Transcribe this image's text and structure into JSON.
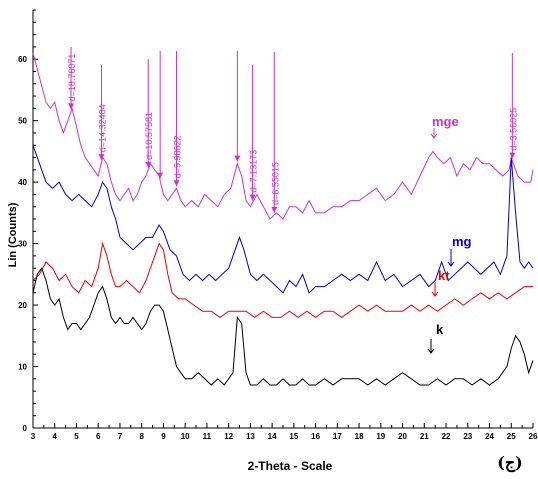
{
  "chart_data": {
    "type": "line",
    "xlabel": "2-Theta - Scale",
    "ylabel": "Lin (Counts)",
    "panel_label": "(ج)",
    "xlim": [
      3,
      26
    ],
    "ylim": [
      0,
      68
    ],
    "x_ticks": [
      3,
      4,
      5,
      6,
      7,
      8,
      9,
      10,
      11,
      12,
      13,
      14,
      15,
      16,
      17,
      18,
      19,
      20,
      21,
      22,
      23,
      24,
      25,
      26
    ],
    "y_ticks": [
      0,
      10,
      20,
      30,
      40,
      50,
      60
    ],
    "grid": false,
    "series": [
      {
        "name": "mge",
        "color": "#cc33cc",
        "x": [
          3.0,
          3.3,
          3.6,
          3.8,
          4.0,
          4.2,
          4.4,
          4.6,
          4.8,
          5.0,
          5.2,
          5.4,
          5.6,
          5.8,
          6.0,
          6.2,
          6.4,
          6.6,
          6.8,
          7.0,
          7.2,
          7.4,
          7.6,
          7.8,
          8.0,
          8.2,
          8.4,
          8.6,
          8.8,
          9.0,
          9.2,
          9.4,
          9.6,
          9.8,
          10.0,
          10.3,
          10.6,
          10.9,
          11.2,
          11.5,
          11.8,
          12.1,
          12.4,
          12.6,
          12.8,
          13.0,
          13.3,
          13.6,
          13.9,
          14.2,
          14.5,
          14.8,
          15.1,
          15.4,
          15.7,
          16.0,
          16.4,
          16.8,
          17.2,
          17.6,
          18.0,
          18.4,
          18.8,
          19.2,
          19.6,
          20.0,
          20.4,
          20.8,
          21.2,
          21.4,
          21.6,
          21.9,
          22.2,
          22.5,
          22.8,
          23.1,
          23.4,
          23.7,
          24.0,
          24.3,
          24.6,
          24.9,
          25.0,
          25.1,
          25.3,
          25.6,
          25.9,
          26.0
        ],
        "y": [
          61,
          57,
          53,
          52,
          53,
          50,
          48,
          50,
          52,
          49,
          46,
          44,
          43,
          42,
          41,
          44,
          43,
          40,
          38,
          37,
          38,
          39,
          37,
          38,
          40,
          41,
          43,
          42,
          41,
          38,
          37,
          38,
          39,
          37,
          36,
          37,
          36,
          38,
          37,
          36,
          38,
          39,
          43,
          41,
          37,
          36,
          38,
          36,
          34,
          35,
          34,
          36,
          36,
          35,
          37,
          35,
          35,
          36,
          36,
          37,
          37,
          38,
          39,
          37,
          38,
          40,
          38,
          41,
          44,
          45,
          44,
          43,
          44,
          41,
          43,
          42,
          44,
          43,
          43,
          42,
          41,
          42,
          44,
          43,
          41,
          40,
          40,
          42
        ]
      },
      {
        "name": "mg",
        "color": "#0000cc",
        "x": [
          3.0,
          3.3,
          3.6,
          3.9,
          4.2,
          4.5,
          4.8,
          5.1,
          5.4,
          5.7,
          6.0,
          6.2,
          6.4,
          6.6,
          6.8,
          7.0,
          7.3,
          7.6,
          7.9,
          8.2,
          8.5,
          8.8,
          9.0,
          9.3,
          9.6,
          9.9,
          10.2,
          10.5,
          10.8,
          11.1,
          11.4,
          11.7,
          12.0,
          12.3,
          12.5,
          12.7,
          13.0,
          13.3,
          13.6,
          13.9,
          14.2,
          14.5,
          14.8,
          15.1,
          15.4,
          15.7,
          16.0,
          16.4,
          16.8,
          17.2,
          17.6,
          18.0,
          18.4,
          18.8,
          19.2,
          19.6,
          20.0,
          20.4,
          20.8,
          21.2,
          21.5,
          21.8,
          22.1,
          22.4,
          22.7,
          23.0,
          23.3,
          23.6,
          23.9,
          24.2,
          24.5,
          24.8,
          25.0,
          25.2,
          25.4,
          25.6,
          25.8,
          26.0
        ],
        "y": [
          46,
          43,
          40,
          39,
          40,
          38,
          37,
          38,
          37,
          36,
          38,
          40,
          39,
          36,
          34,
          31,
          30,
          29,
          30,
          31,
          31,
          33,
          32,
          29,
          28,
          25,
          24,
          25,
          24,
          25,
          24,
          25,
          26,
          29,
          31,
          29,
          25,
          24,
          25,
          24,
          23,
          22,
          24,
          23,
          25,
          22,
          23,
          23,
          24,
          25,
          24,
          25,
          24,
          27,
          24,
          25,
          23,
          24,
          25,
          23,
          24,
          27,
          24,
          25,
          26,
          27,
          26,
          25,
          26,
          27,
          25,
          28,
          44,
          35,
          27,
          26,
          27,
          26
        ]
      },
      {
        "name": "kt",
        "color": "#ee0000",
        "x": [
          3.0,
          3.3,
          3.6,
          3.9,
          4.2,
          4.5,
          4.8,
          5.1,
          5.4,
          5.7,
          6.0,
          6.2,
          6.4,
          6.6,
          6.8,
          7.0,
          7.3,
          7.6,
          7.9,
          8.2,
          8.5,
          8.8,
          9.0,
          9.2,
          9.4,
          9.7,
          10.0,
          10.4,
          10.8,
          11.2,
          11.6,
          12.0,
          12.4,
          12.8,
          13.2,
          13.6,
          14.0,
          14.4,
          14.8,
          15.2,
          15.6,
          16.0,
          16.4,
          16.8,
          17.2,
          17.6,
          18.0,
          18.4,
          18.8,
          19.2,
          19.6,
          20.0,
          20.4,
          20.8,
          21.2,
          21.6,
          22.0,
          22.4,
          22.8,
          23.2,
          23.6,
          24.0,
          24.4,
          24.8,
          25.2,
          25.6,
          26.0
        ],
        "y": [
          24,
          25,
          27,
          26,
          24,
          25,
          23,
          22,
          24,
          23,
          26,
          30,
          28,
          25,
          23,
          23,
          24,
          23,
          22,
          24,
          27,
          30,
          29,
          25,
          22,
          21,
          21,
          20,
          19,
          19,
          18,
          19,
          19,
          19,
          18,
          19,
          18,
          18,
          19,
          18,
          19,
          18,
          19,
          19,
          18,
          19,
          20,
          19,
          20,
          19,
          19,
          19,
          20,
          19,
          20,
          19,
          20,
          21,
          20,
          21,
          22,
          21,
          22,
          21,
          22,
          23,
          23
        ]
      },
      {
        "name": "k",
        "color": "#000000",
        "x": [
          3.0,
          3.2,
          3.4,
          3.6,
          3.8,
          4.0,
          4.2,
          4.4,
          4.6,
          4.8,
          5.0,
          5.2,
          5.4,
          5.6,
          5.8,
          6.0,
          6.2,
          6.4,
          6.6,
          6.8,
          7.0,
          7.2,
          7.4,
          7.6,
          7.8,
          8.0,
          8.2,
          8.4,
          8.6,
          8.8,
          9.0,
          9.2,
          9.4,
          9.6,
          9.8,
          10.0,
          10.3,
          10.6,
          10.9,
          11.2,
          11.5,
          11.8,
          12.0,
          12.2,
          12.4,
          12.6,
          12.8,
          13.0,
          13.3,
          13.6,
          13.9,
          14.2,
          14.5,
          14.8,
          15.1,
          15.4,
          15.7,
          16.0,
          16.4,
          16.8,
          17.2,
          17.6,
          18.0,
          18.4,
          18.8,
          19.2,
          19.6,
          20.0,
          20.4,
          20.8,
          21.2,
          21.6,
          22.0,
          22.4,
          22.8,
          23.2,
          23.6,
          24.0,
          24.4,
          24.8,
          25.0,
          25.2,
          25.4,
          25.6,
          25.8,
          26.0
        ],
        "y": [
          22,
          25,
          26,
          24,
          21,
          20,
          21,
          18,
          16,
          17,
          17,
          16,
          17,
          18,
          20,
          22,
          23,
          21,
          18,
          17,
          18,
          17,
          17,
          18,
          17,
          16,
          17,
          19,
          20,
          20,
          19,
          16,
          13,
          10,
          9,
          8,
          8,
          9,
          8,
          7,
          8,
          7,
          8,
          9,
          18,
          17,
          9,
          7,
          7,
          8,
          7,
          7,
          8,
          7,
          7,
          8,
          7,
          7,
          8,
          7,
          8,
          8,
          8,
          7,
          8,
          7,
          8,
          9,
          8,
          7,
          7,
          8,
          7,
          8,
          8,
          7,
          8,
          7,
          8,
          10,
          13,
          15,
          14,
          12,
          9,
          11
        ]
      }
    ],
    "peak_markers": [
      {
        "x": 4.75,
        "label": "d=18.76071"
      },
      {
        "x": 6.15,
        "label": "d=14.32404"
      },
      {
        "x": 8.3,
        "label": "d=10.57581"
      },
      {
        "x": 8.85,
        "label": ""
      },
      {
        "x": 9.6,
        "label": "d=9.98622"
      },
      {
        "x": 12.4,
        "label": ""
      },
      {
        "x": 13.1,
        "label": "d=7.13173"
      },
      {
        "x": 14.1,
        "label": "d=6.55015"
      },
      {
        "x": 25.05,
        "label": "d=3.56025"
      }
    ],
    "series_labels": [
      {
        "text": "mge",
        "color": "#cc33cc"
      },
      {
        "text": "mg",
        "color": "#0000cc"
      },
      {
        "text": "kt",
        "color": "#ee0000"
      },
      {
        "text": "k",
        "color": "#000000"
      }
    ]
  }
}
